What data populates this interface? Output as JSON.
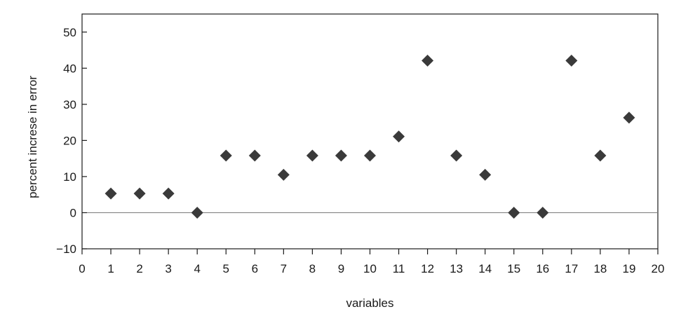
{
  "chart_data": {
    "type": "scatter",
    "title": "",
    "xlabel": "variables",
    "ylabel": "percent increse in error",
    "xlim": [
      0,
      20
    ],
    "ylim": [
      -10,
      55
    ],
    "xticks": [
      0,
      1,
      2,
      3,
      4,
      5,
      6,
      7,
      8,
      9,
      10,
      11,
      12,
      13,
      14,
      15,
      16,
      17,
      18,
      19,
      20
    ],
    "yticks": [
      -10,
      0,
      10,
      20,
      30,
      40,
      50
    ],
    "ytick_labels": [
      "−10",
      "0",
      "10",
      "20",
      "30",
      "40",
      "50"
    ],
    "grid": false,
    "zero_line": true,
    "marker": "diamond",
    "marker_color": "#3a3a3a",
    "series": [
      {
        "x": [
          1,
          2,
          3,
          4,
          5,
          6,
          7,
          8,
          9,
          10,
          11,
          12,
          13,
          14,
          15,
          16,
          17,
          18,
          19
        ],
        "y": [
          5.3,
          5.3,
          5.3,
          0,
          15.8,
          15.8,
          10.5,
          15.8,
          15.8,
          15.8,
          21.1,
          42.1,
          15.8,
          10.5,
          0,
          0,
          42.1,
          15.8,
          26.3
        ]
      }
    ]
  }
}
